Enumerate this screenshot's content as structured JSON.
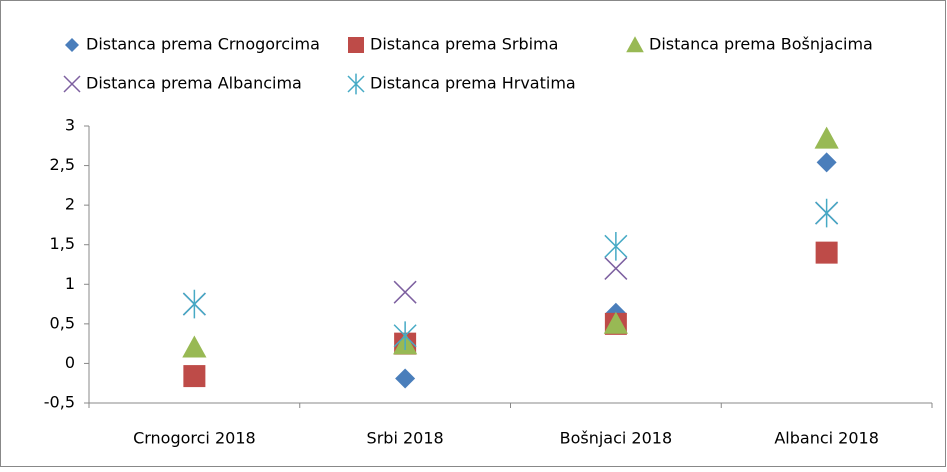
{
  "chart_data": {
    "type": "scatter",
    "categories": [
      "Crnogorci 2018",
      "Srbi 2018",
      "Bošnjaci 2018",
      "Albanci 2018"
    ],
    "series": [
      {
        "name": "Distanca prema Crnogorcima",
        "color": "#4a7ebb",
        "marker": "diamond",
        "values": [
          -0.15,
          -0.19,
          0.64,
          2.54
        ]
      },
      {
        "name": "Distanca prema Srbima",
        "color": "#be4b48",
        "marker": "square",
        "values": [
          -0.16,
          0.25,
          0.5,
          1.4
        ]
      },
      {
        "name": "Distanca prema Bošnjacima",
        "color": "#98b954",
        "marker": "triangle",
        "values": [
          0.2,
          0.24,
          0.5,
          2.84
        ]
      },
      {
        "name": "Distanca prema Albancima",
        "color": "#7d60a0",
        "marker": "x",
        "values": [
          0.75,
          0.9,
          1.2,
          1.9
        ]
      },
      {
        "name": "Distanca prema Hrvatima",
        "color": "#46aac5",
        "marker": "asterisk",
        "values": [
          0.75,
          0.35,
          1.48,
          1.9
        ]
      }
    ],
    "ylim": [
      -0.5,
      3
    ],
    "yticks": [
      {
        "value": -0.5,
        "label": "-0,5"
      },
      0,
      {
        "value": 0.5,
        "label": "0,5"
      },
      1,
      {
        "value": 1.5,
        "label": "1,5"
      },
      2,
      {
        "value": 2.5,
        "label": "2,5"
      },
      3
    ],
    "grid": false,
    "legend": "top"
  }
}
